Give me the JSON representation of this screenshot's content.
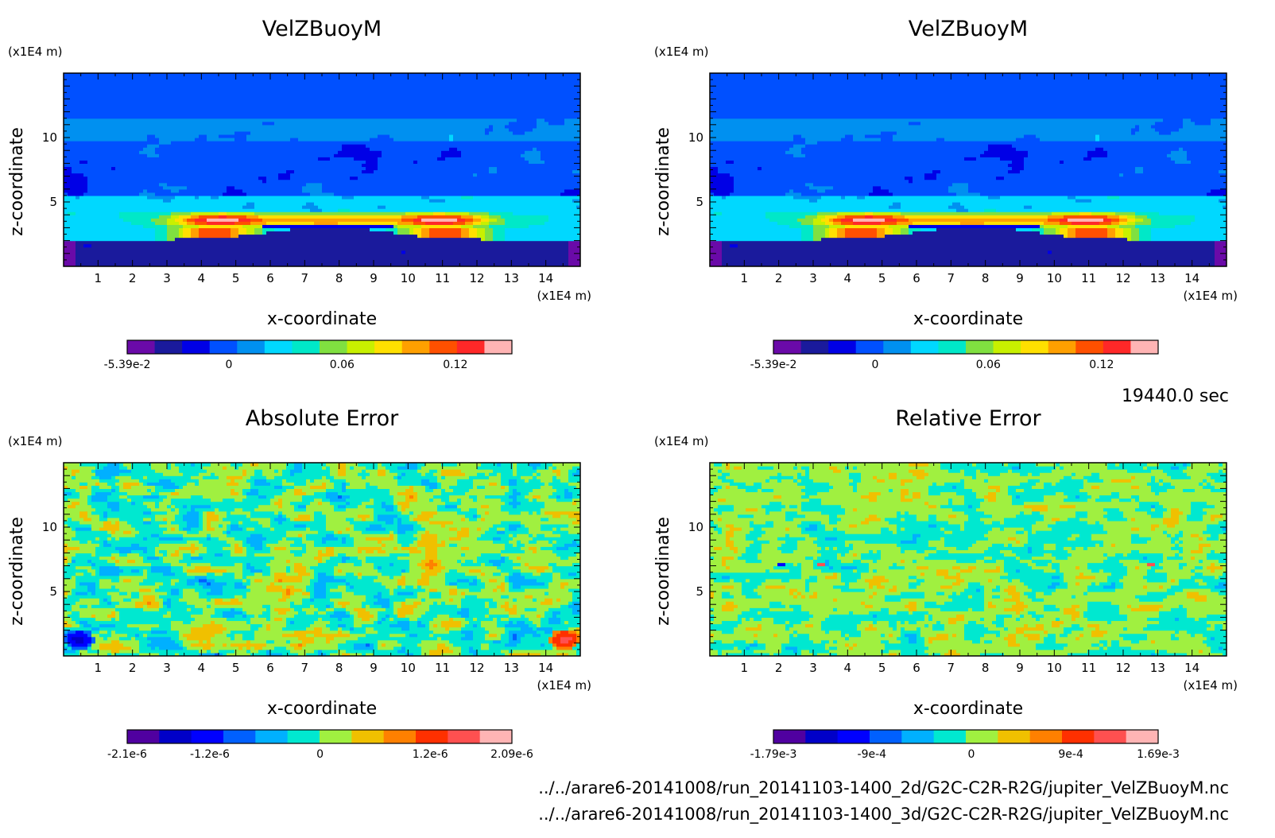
{
  "time_label": "19440.0 sec",
  "file_paths": [
    "../../arare6-20141008/run_20141103-1400_2d/G2C-C2R-R2G/jupiter_VelZBuoyM.nc",
    "../../arare6-20141008/run_20141103-1400_3d/G2C-C2R-R2G/jupiter_VelZBuoyM.nc"
  ],
  "colors": {
    "rainbow14": [
      "#6a0aa8",
      "#1a1a9c",
      "#0000e6",
      "#0050ff",
      "#0090f0",
      "#00d8ff",
      "#00e8c8",
      "#80e040",
      "#c8f000",
      "#ffe000",
      "#ffa000",
      "#ff5000",
      "#ff2828",
      "#ffb4b4"
    ],
    "error12": [
      "#5000a0",
      "#0000c8",
      "#0000ff",
      "#0060ff",
      "#00b0ff",
      "#00e8d0",
      "#a0f040",
      "#f0c000",
      "#ff8000",
      "#ff3000",
      "#ff5050",
      "#ffb4b4"
    ]
  },
  "chart_data": [
    {
      "type": "heatmap",
      "title": "VelZBuoyM",
      "xlabel": "x-coordinate",
      "ylabel": "z-coordinate",
      "x_unit": "(x1E4 m)",
      "y_unit": "(x1E4 m)",
      "x_ticks": [
        "1",
        "2",
        "3",
        "4",
        "5",
        "6",
        "7",
        "8",
        "9",
        "10",
        "11",
        "12",
        "13",
        "14"
      ],
      "y_ticks": [
        "5",
        "10"
      ],
      "xlim": [
        0,
        15
      ],
      "ylim": [
        0,
        15
      ],
      "colorbar": {
        "min": -0.0539,
        "max": 0.15,
        "tick_labels": [
          "-5.39e-2",
          "0",
          "0.06",
          "0.12"
        ],
        "tick_values": [
          -0.0539,
          0,
          0.06,
          0.12
        ]
      },
      "value_range": [
        -0.0539,
        0.15
      ],
      "features": "stable upper layers with near-zero to weakly negative values; strong positive band (0.08 to 0.15) near z=3-4 (x1E4 m) peaking near x=4-5 and x=10-11; negative region below z=3"
    },
    {
      "type": "heatmap",
      "title": "VelZBuoyM",
      "xlabel": "x-coordinate",
      "ylabel": "z-coordinate",
      "x_unit": "(x1E4 m)",
      "y_unit": "(x1E4 m)",
      "x_ticks": [
        "1",
        "2",
        "3",
        "4",
        "5",
        "6",
        "7",
        "8",
        "9",
        "10",
        "11",
        "12",
        "13",
        "14"
      ],
      "y_ticks": [
        "5",
        "10"
      ],
      "xlim": [
        0,
        15
      ],
      "ylim": [
        0,
        15
      ],
      "colorbar": {
        "min": -0.0539,
        "max": 0.15,
        "tick_labels": [
          "-5.39e-2",
          "0",
          "0.06",
          "0.12"
        ],
        "tick_values": [
          -0.0539,
          0,
          0.06,
          0.12
        ]
      },
      "value_range": [
        -0.0539,
        0.15
      ],
      "features": "identical pattern to the 2d run"
    },
    {
      "type": "heatmap",
      "title": "Absolute Error",
      "xlabel": "x-coordinate",
      "ylabel": "z-coordinate",
      "x_unit": "(x1E4 m)",
      "y_unit": "(x1E4 m)",
      "x_ticks": [
        "1",
        "2",
        "3",
        "4",
        "5",
        "6",
        "7",
        "8",
        "9",
        "10",
        "11",
        "12",
        "13",
        "14"
      ],
      "y_ticks": [
        "5",
        "10"
      ],
      "xlim": [
        0,
        15
      ],
      "ylim": [
        0,
        15
      ],
      "colorbar": {
        "min": -2.1e-06,
        "max": 2.09e-06,
        "tick_labels": [
          "-2.1e-6",
          "-1.2e-6",
          "0",
          "1.2e-6",
          "2.09e-6"
        ],
        "tick_values": [
          -2.1e-06,
          -1.2e-06,
          0,
          1.2e-06,
          2.09e-06
        ]
      },
      "value_range": [
        -2.1e-06,
        2.09e-06
      ],
      "features": "mostly noise around 0 (cyan/green); extreme values at lower left and lower right corners near z=1-2"
    },
    {
      "type": "heatmap",
      "title": "Relative Error",
      "xlabel": "x-coordinate",
      "ylabel": "z-coordinate",
      "x_unit": "(x1E4 m)",
      "y_unit": "(x1E4 m)",
      "x_ticks": [
        "1",
        "2",
        "3",
        "4",
        "5",
        "6",
        "7",
        "8",
        "9",
        "10",
        "11",
        "12",
        "13",
        "14"
      ],
      "y_ticks": [
        "5",
        "10"
      ],
      "xlim": [
        0,
        15
      ],
      "ylim": [
        0,
        15
      ],
      "colorbar": {
        "min": -0.00179,
        "max": 0.00169,
        "tick_labels": [
          "-1.79e-3",
          "-9e-4",
          "0",
          "9e-4",
          "1.69e-3"
        ],
        "tick_values": [
          -0.00179,
          -0.0009,
          0,
          0.0009,
          0.00169
        ]
      },
      "value_range": [
        -0.00179,
        0.00169
      ],
      "features": "mostly noise around 0 (cyan/green); isolated small extremes near z=7"
    }
  ]
}
